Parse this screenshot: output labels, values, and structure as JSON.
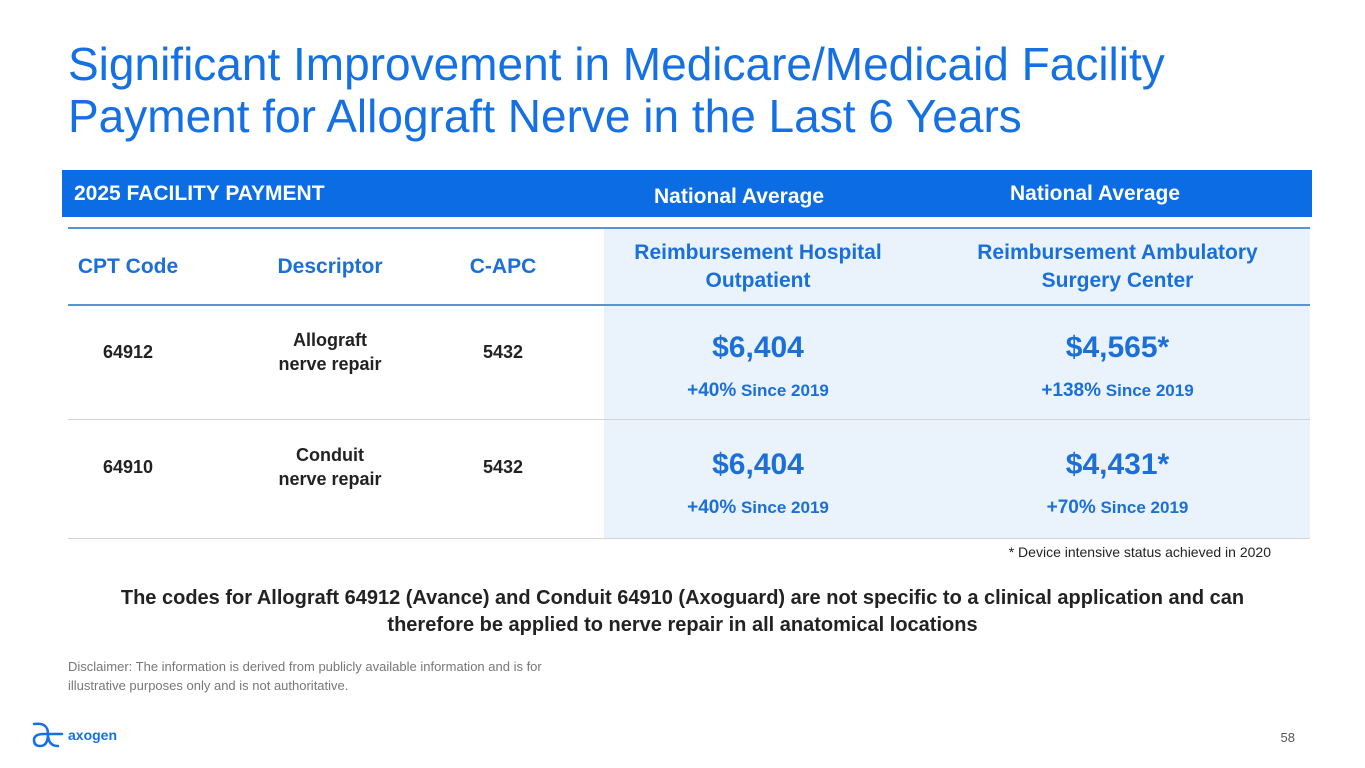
{
  "title": "Significant Improvement in Medicare/Medicaid Facility Payment for Allograft Nerve in the Last 6 Years",
  "bar": {
    "label": "2025 FACILITY PAYMENT",
    "col1": "National Average",
    "col2": "National Average"
  },
  "columns": [
    "CPT Code",
    "Descriptor",
    "C-APC",
    "Reimbursement Hospital Outpatient",
    "Reimbursement Ambulatory Surgery Center"
  ],
  "rows": [
    {
      "cpt": "64912",
      "desc1": "Allograft",
      "desc2": "nerve repair",
      "capc": "5432",
      "hop": "$6,404",
      "hop_pct": "+40%",
      "hop_since": "Since 2019",
      "asc": "$4,565*",
      "asc_pct": "+138%",
      "asc_since": "Since 2019"
    },
    {
      "cpt": "64910",
      "desc1": "Conduit",
      "desc2": "nerve repair",
      "capc": "5432",
      "hop": "$6,404",
      "hop_pct": "+40%",
      "hop_since": "Since 2019",
      "asc": "$4,431*",
      "asc_pct": "+70%",
      "asc_since": "Since 2019"
    }
  ],
  "footnote": "* Device intensive status achieved in 2020",
  "summary": "The codes for Allograft 64912 (Avance) and Conduit 64910 (Axoguard) are not specific to a clinical application and can therefore be applied to nerve repair in all anatomical locations",
  "disclaimer": "Disclaimer: The information is derived from publicly available information and is for illustrative purposes only and is not authoritative.",
  "logo": "axogen",
  "page_number": "58",
  "colors": {
    "accent": "#0b6ce4",
    "shade": "#eaf3fb"
  }
}
